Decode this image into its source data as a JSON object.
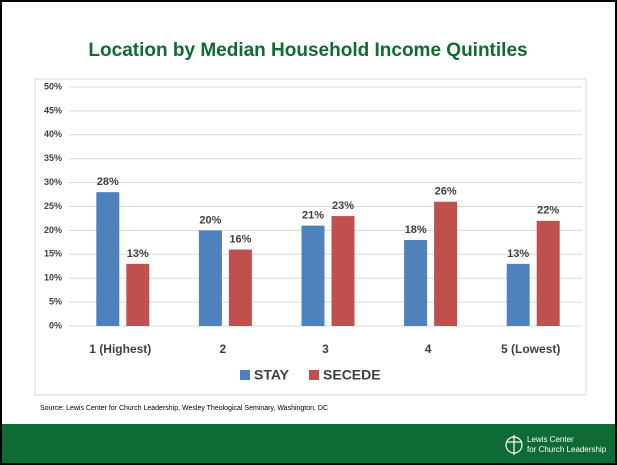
{
  "chart_data": {
    "type": "bar",
    "title": "Location by Median Household Income Quintiles",
    "categories": [
      "1 (Highest)",
      "2",
      "3",
      "4",
      "5 (Lowest)"
    ],
    "series": [
      {
        "name": "STAY",
        "color": "#4f81bd",
        "values": [
          28,
          20,
          21,
          18,
          13
        ],
        "value_labels": [
          "28%",
          "20%",
          "21%",
          "18%",
          "13%"
        ]
      },
      {
        "name": "SECEDE",
        "color": "#c0504d",
        "values": [
          13,
          16,
          23,
          26,
          22
        ],
        "value_labels": [
          "13%",
          "16%",
          "23%",
          "26%",
          "22%"
        ]
      }
    ],
    "ylim": [
      0,
      50
    ],
    "yticks": [
      {
        "value": 0,
        "label": "0%"
      },
      {
        "value": 5,
        "label": "5%"
      },
      {
        "value": 10,
        "label": "10%"
      },
      {
        "value": 15,
        "label": "15%"
      },
      {
        "value": 20,
        "label": "20%"
      },
      {
        "value": 25,
        "label": "25%"
      },
      {
        "value": 30,
        "label": "30%"
      },
      {
        "value": 35,
        "label": "35%"
      },
      {
        "value": 40,
        "label": "40%"
      },
      {
        "value": 45,
        "label": "45%"
      },
      {
        "value": 50,
        "label": "50%"
      }
    ],
    "grid": true,
    "legend": "bottom",
    "source": "Source: Lewis Center for Church Leadership, Wesley Theological Seminary, Washington, DC"
  },
  "footer": {
    "logo_line1": "Lewis Center",
    "logo_line2": "for Church Leadership"
  }
}
